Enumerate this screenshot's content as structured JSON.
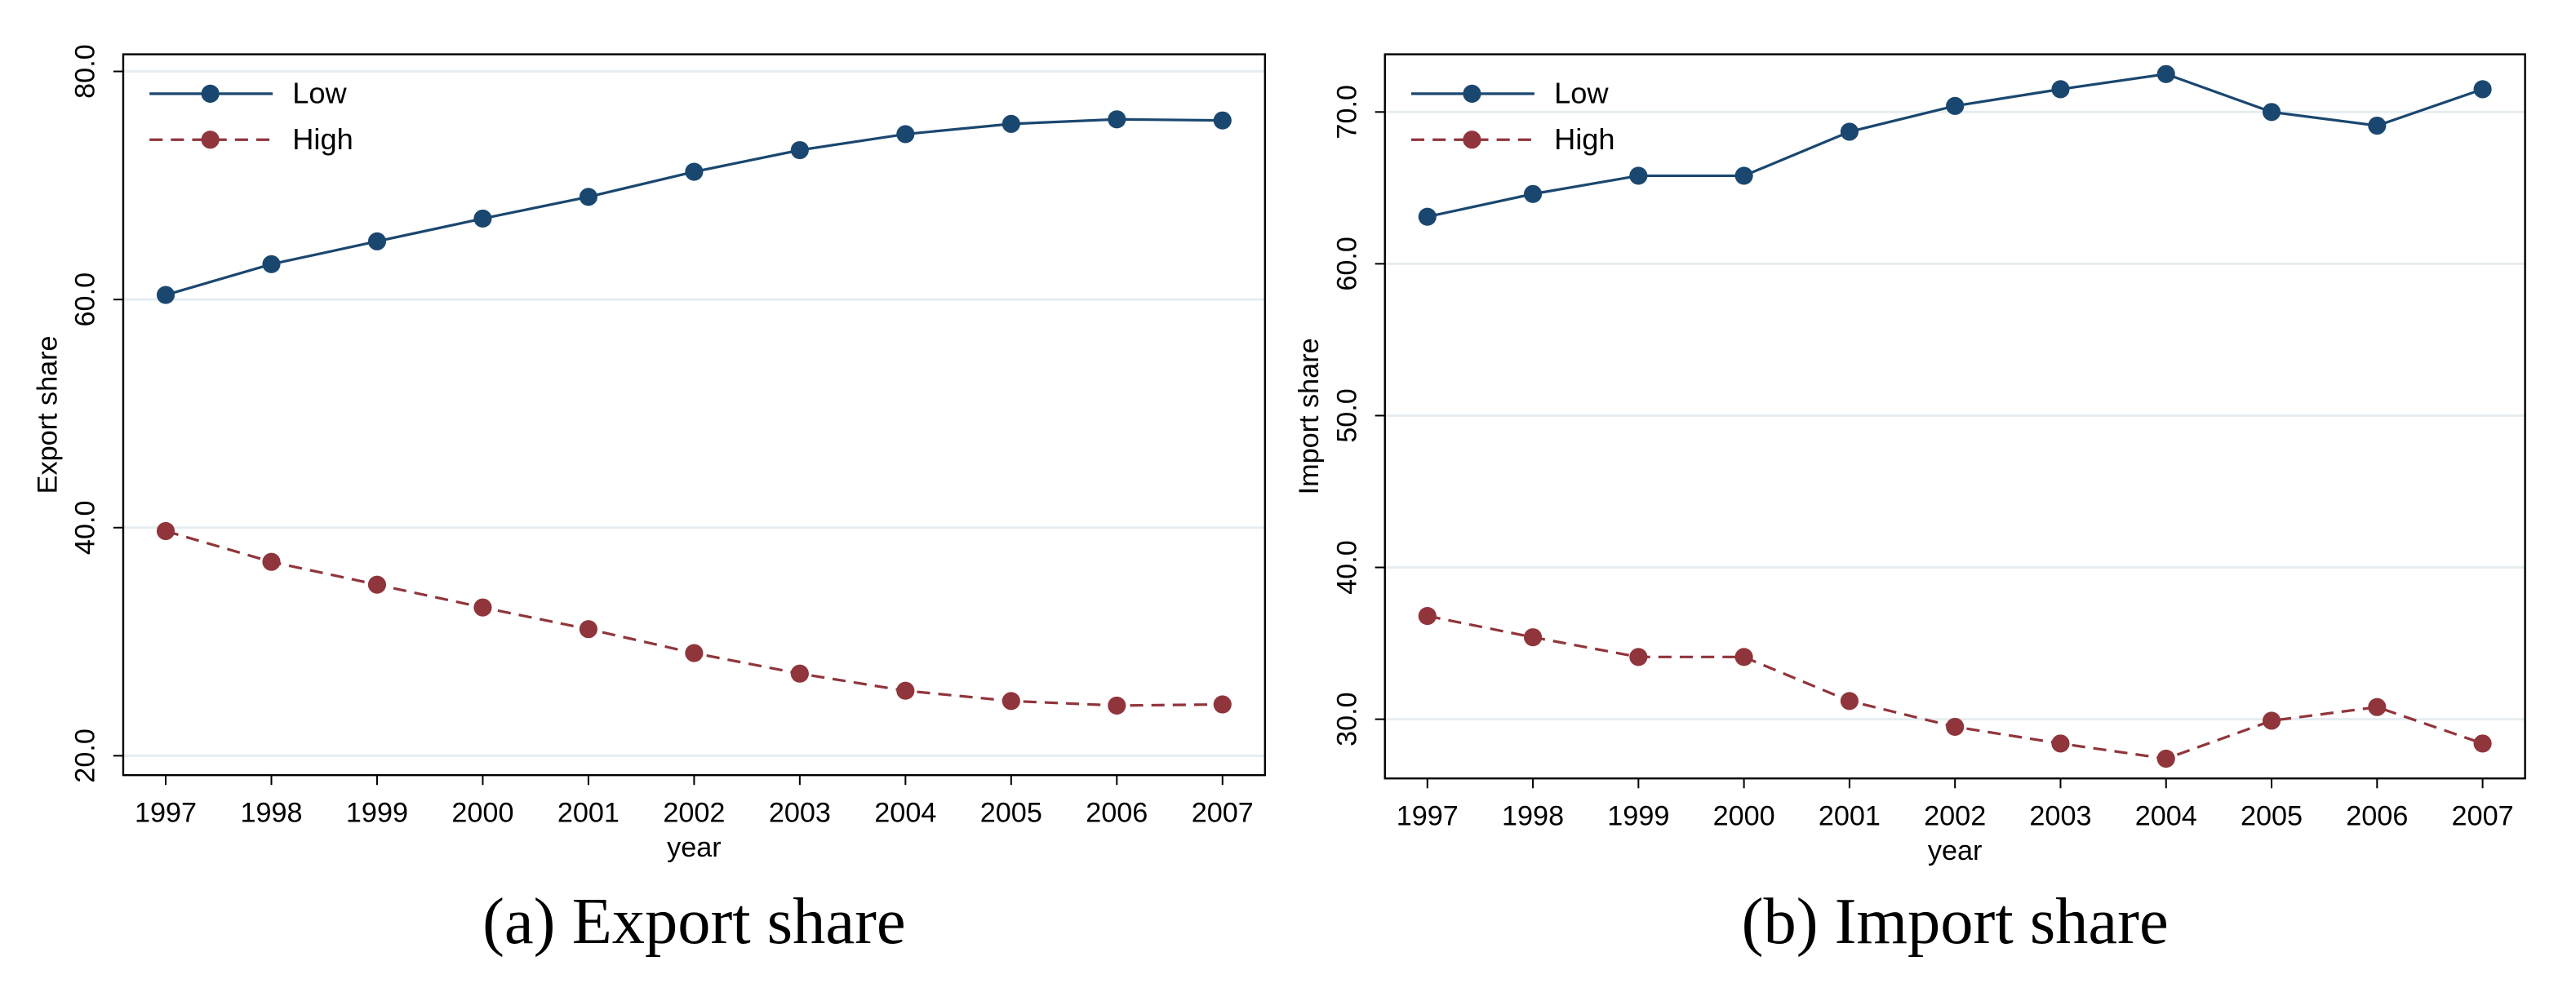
{
  "chart_data": [
    {
      "type": "line",
      "caption": "(a) Export share",
      "y_label": "Export share",
      "x_label": "year",
      "x": [
        1997,
        1998,
        1999,
        2000,
        2001,
        2002,
        2003,
        2004,
        2005,
        2006,
        2007
      ],
      "xlim": [
        1996.8,
        2007.2
      ],
      "xticks": [
        1997,
        1998,
        1999,
        2000,
        2001,
        2002,
        2003,
        2004,
        2005,
        2006,
        2007
      ],
      "ylim": [
        18.3,
        81.5
      ],
      "yticks": [
        {
          "value": 20,
          "label": "20.0"
        },
        {
          "value": 40,
          "label": "40.0"
        },
        {
          "value": 60,
          "label": "60.0"
        },
        {
          "value": 80,
          "label": "80.0"
        }
      ],
      "grid": true,
      "legend": "top-left",
      "series": [
        {
          "name": "Low",
          "color": "#1a476f",
          "line_style": "solid",
          "values": [
            60.4,
            63.1,
            65.1,
            67.1,
            69.0,
            71.2,
            73.1,
            74.5,
            75.4,
            75.8,
            75.7
          ]
        },
        {
          "name": "High",
          "color": "#90353b",
          "line_style": "dashed",
          "values": [
            39.7,
            37.0,
            35.0,
            33.0,
            31.1,
            29.0,
            27.2,
            25.7,
            24.8,
            24.4,
            24.5
          ]
        }
      ]
    },
    {
      "type": "line",
      "caption": "(b) Import share",
      "y_label": "Import share",
      "x_label": "year",
      "x": [
        1997,
        1998,
        1999,
        2000,
        2001,
        2002,
        2003,
        2004,
        2005,
        2006,
        2007
      ],
      "xlim": [
        1996.8,
        2007.2
      ],
      "xticks": [
        1997,
        1998,
        1999,
        2000,
        2001,
        2002,
        2003,
        2004,
        2005,
        2006,
        2007
      ],
      "ylim": [
        26.1,
        73.8
      ],
      "yticks": [
        {
          "value": 30,
          "label": "30.0"
        },
        {
          "value": 40,
          "label": "40.0"
        },
        {
          "value": 50,
          "label": "50.0"
        },
        {
          "value": 60,
          "label": "60.0"
        },
        {
          "value": 70,
          "label": "70.0"
        }
      ],
      "grid": true,
      "legend": "top-left",
      "series": [
        {
          "name": "Low",
          "color": "#1a476f",
          "line_style": "solid",
          "values": [
            63.1,
            64.6,
            65.8,
            65.8,
            68.7,
            70.4,
            71.5,
            72.5,
            70.0,
            69.1,
            71.5
          ]
        },
        {
          "name": "High",
          "color": "#90353b",
          "line_style": "dashed",
          "values": [
            36.8,
            35.4,
            34.1,
            34.1,
            31.2,
            29.5,
            28.4,
            27.4,
            29.9,
            30.8,
            28.4
          ]
        }
      ]
    }
  ]
}
